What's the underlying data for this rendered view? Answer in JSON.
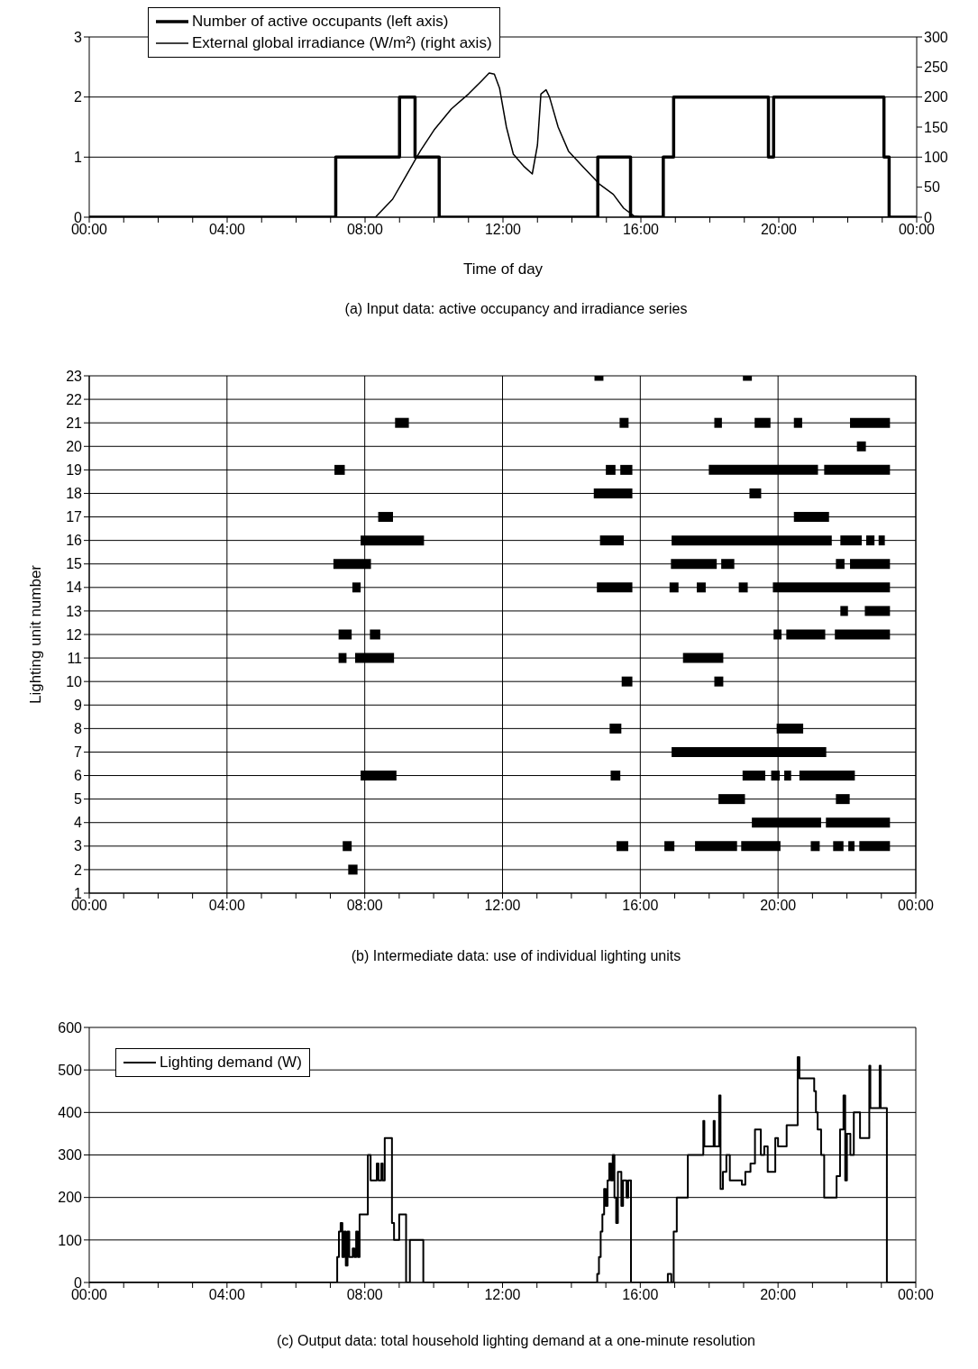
{
  "chart_data": [
    {
      "type": "line",
      "xlabel": "Time of day",
      "annotations": [
        "(a) Input data: active occupancy and irradiance series"
      ],
      "xlim": [
        0,
        24
      ],
      "xticks": [
        {
          "value": 0,
          "label": "00:00"
        },
        {
          "value": 1,
          "label": null
        },
        {
          "value": 2,
          "label": null
        },
        {
          "value": 3,
          "label": null
        },
        {
          "value": 4,
          "label": "04:00"
        },
        {
          "value": 5,
          "label": null
        },
        {
          "value": 6,
          "label": null
        },
        {
          "value": 7,
          "label": null
        },
        {
          "value": 8,
          "label": "08:00"
        },
        {
          "value": 9,
          "label": null
        },
        {
          "value": 10,
          "label": null
        },
        {
          "value": 11,
          "label": null
        },
        {
          "value": 12,
          "label": "12:00"
        },
        {
          "value": 13,
          "label": null
        },
        {
          "value": 14,
          "label": null
        },
        {
          "value": 15,
          "label": null
        },
        {
          "value": 16,
          "label": "16:00"
        },
        {
          "value": 17,
          "label": null
        },
        {
          "value": 18,
          "label": null
        },
        {
          "value": 19,
          "label": null
        },
        {
          "value": 20,
          "label": "20:00"
        },
        {
          "value": 21,
          "label": null
        },
        {
          "value": 22,
          "label": null
        },
        {
          "value": 23,
          "label": null
        },
        {
          "value": 24,
          "label": "00:00"
        }
      ],
      "ylim": [
        0,
        3
      ],
      "yticks": [
        0,
        1,
        2,
        3
      ],
      "y2lim": [
        0,
        300
      ],
      "y2ticks": [
        0,
        50,
        100,
        150,
        200,
        250,
        300
      ],
      "grid": "y",
      "legend": "top left",
      "series": [
        {
          "name": "Number of active occupants (left axis)",
          "type": "step",
          "color": "#000000",
          "x": [
            0,
            7.15,
            9.0,
            9.45,
            10.15,
            14.75,
            15.7,
            16.65,
            16.95,
            19.7,
            19.85,
            23.05,
            23.2,
            24
          ],
          "values": [
            0,
            1,
            2,
            1,
            0,
            1,
            0,
            1,
            2,
            1,
            2,
            1,
            0,
            0
          ]
        },
        {
          "name": "External global irradiance (W/m²) (right axis)",
          "axis": "y2",
          "color": "#000000",
          "x": [
            0,
            8.3,
            8.8,
            9.2,
            9.6,
            10.0,
            10.5,
            11.0,
            11.4,
            11.6,
            11.75,
            11.9,
            12.1,
            12.3,
            12.6,
            12.85,
            13.0,
            13.1,
            13.25,
            13.35,
            13.6,
            13.9,
            14.3,
            14.8,
            15.2,
            15.5,
            15.8,
            16.0,
            24
          ],
          "values": [
            0,
            0,
            30,
            70,
            110,
            145,
            180,
            205,
            228,
            240,
            238,
            215,
            150,
            105,
            85,
            72,
            120,
            205,
            212,
            200,
            150,
            110,
            85,
            55,
            38,
            15,
            2,
            0,
            0
          ]
        }
      ]
    },
    {
      "type": "line",
      "ylabel": "Lighting unit number",
      "annotations": [
        "(b) Intermediate data: use of individual lighting units"
      ],
      "xlim": [
        0,
        24
      ],
      "xticks": [
        {
          "value": 0,
          "label": "00:00"
        },
        {
          "value": 1,
          "label": null
        },
        {
          "value": 2,
          "label": null
        },
        {
          "value": 3,
          "label": null
        },
        {
          "value": 4,
          "label": "04:00"
        },
        {
          "value": 5,
          "label": null
        },
        {
          "value": 6,
          "label": null
        },
        {
          "value": 7,
          "label": null
        },
        {
          "value": 8,
          "label": "08:00"
        },
        {
          "value": 9,
          "label": null
        },
        {
          "value": 10,
          "label": null
        },
        {
          "value": 11,
          "label": null
        },
        {
          "value": 12,
          "label": "12:00"
        },
        {
          "value": 13,
          "label": null
        },
        {
          "value": 14,
          "label": null
        },
        {
          "value": 15,
          "label": null
        },
        {
          "value": 16,
          "label": "16:00"
        },
        {
          "value": 17,
          "label": null
        },
        {
          "value": 18,
          "label": null
        },
        {
          "value": 19,
          "label": null
        },
        {
          "value": 20,
          "label": "20:00"
        },
        {
          "value": 21,
          "label": null
        },
        {
          "value": 22,
          "label": null
        },
        {
          "value": 23,
          "label": null
        },
        {
          "value": 24,
          "label": "00:00"
        }
      ],
      "ylim": [
        1,
        23
      ],
      "yticks": [
        1,
        2,
        3,
        4,
        5,
        6,
        7,
        8,
        9,
        10,
        11,
        12,
        13,
        14,
        15,
        16,
        17,
        18,
        19,
        20,
        21,
        22,
        23
      ],
      "grid": true,
      "series": [
        {
          "color": "#000000",
          "x": [
            14.67,
            14.93
          ],
          "values": [
            23,
            23
          ]
        },
        {
          "color": "#000000",
          "x": [
            18.98,
            19.24
          ],
          "values": [
            23,
            23
          ]
        },
        {
          "color": "#000000",
          "x": [
            8.88,
            9.28
          ],
          "values": [
            21,
            21
          ]
        },
        {
          "color": "#000000",
          "x": [
            15.4,
            15.66
          ],
          "values": [
            21,
            21
          ]
        },
        {
          "color": "#000000",
          "x": [
            18.15,
            18.37
          ],
          "values": [
            21,
            21
          ]
        },
        {
          "color": "#000000",
          "x": [
            19.32,
            19.78
          ],
          "values": [
            21,
            21
          ]
        },
        {
          "color": "#000000",
          "x": [
            20.46,
            20.7
          ],
          "values": [
            21,
            21
          ]
        },
        {
          "color": "#000000",
          "x": [
            22.09,
            23.25
          ],
          "values": [
            21,
            21
          ]
        },
        {
          "color": "#000000",
          "x": [
            22.29,
            22.55
          ],
          "values": [
            20,
            20
          ]
        },
        {
          "color": "#000000",
          "x": [
            7.12,
            7.42
          ],
          "values": [
            19,
            19
          ]
        },
        {
          "color": "#000000",
          "x": [
            15.0,
            15.28
          ],
          "values": [
            19,
            19
          ]
        },
        {
          "color": "#000000",
          "x": [
            15.42,
            15.77
          ],
          "values": [
            19,
            19
          ]
        },
        {
          "color": "#000000",
          "x": [
            17.99,
            21.16
          ],
          "values": [
            19,
            19
          ]
        },
        {
          "color": "#000000",
          "x": [
            21.34,
            23.25
          ],
          "values": [
            19,
            19
          ]
        },
        {
          "color": "#000000",
          "x": [
            14.65,
            15.77
          ],
          "values": [
            18,
            18
          ]
        },
        {
          "color": "#000000",
          "x": [
            19.17,
            19.51
          ],
          "values": [
            18,
            18
          ]
        },
        {
          "color": "#000000",
          "x": [
            8.39,
            8.82
          ],
          "values": [
            17,
            17
          ]
        },
        {
          "color": "#000000",
          "x": [
            20.46,
            21.48
          ],
          "values": [
            17,
            17
          ]
        },
        {
          "color": "#000000",
          "x": [
            7.88,
            9.72
          ],
          "values": [
            16,
            16
          ]
        },
        {
          "color": "#000000",
          "x": [
            14.83,
            15.52
          ],
          "values": [
            16,
            16
          ]
        },
        {
          "color": "#000000",
          "x": [
            16.91,
            21.56
          ],
          "values": [
            16,
            16
          ]
        },
        {
          "color": "#000000",
          "x": [
            21.81,
            22.43
          ],
          "values": [
            16,
            16
          ]
        },
        {
          "color": "#000000",
          "x": [
            22.56,
            22.8
          ],
          "values": [
            16,
            16
          ]
        },
        {
          "color": "#000000",
          "x": [
            22.92,
            23.1
          ],
          "values": [
            16,
            16
          ]
        },
        {
          "color": "#000000",
          "x": [
            7.09,
            8.18
          ],
          "values": [
            15,
            15
          ]
        },
        {
          "color": "#000000",
          "x": [
            16.89,
            18.22
          ],
          "values": [
            15,
            15
          ]
        },
        {
          "color": "#000000",
          "x": [
            18.35,
            18.73
          ],
          "values": [
            15,
            15
          ]
        },
        {
          "color": "#000000",
          "x": [
            21.68,
            21.93
          ],
          "values": [
            15,
            15
          ]
        },
        {
          "color": "#000000",
          "x": [
            22.09,
            23.25
          ],
          "values": [
            15,
            15
          ]
        },
        {
          "color": "#000000",
          "x": [
            7.64,
            7.88
          ],
          "values": [
            14,
            14
          ]
        },
        {
          "color": "#000000",
          "x": [
            14.74,
            15.77
          ],
          "values": [
            14,
            14
          ]
        },
        {
          "color": "#000000",
          "x": [
            16.85,
            17.11
          ],
          "values": [
            14,
            14
          ]
        },
        {
          "color": "#000000",
          "x": [
            17.64,
            17.9
          ],
          "values": [
            14,
            14
          ]
        },
        {
          "color": "#000000",
          "x": [
            18.86,
            19.12
          ],
          "values": [
            14,
            14
          ]
        },
        {
          "color": "#000000",
          "x": [
            19.85,
            23.25
          ],
          "values": [
            14,
            14
          ]
        },
        {
          "color": "#000000",
          "x": [
            21.81,
            22.03
          ],
          "values": [
            13,
            13
          ]
        },
        {
          "color": "#000000",
          "x": [
            22.52,
            23.25
          ],
          "values": [
            13,
            13
          ]
        },
        {
          "color": "#000000",
          "x": [
            7.24,
            7.62
          ],
          "values": [
            12,
            12
          ]
        },
        {
          "color": "#000000",
          "x": [
            8.15,
            8.45
          ],
          "values": [
            12,
            12
          ]
        },
        {
          "color": "#000000",
          "x": [
            19.87,
            20.1
          ],
          "values": [
            12,
            12
          ]
        },
        {
          "color": "#000000",
          "x": [
            20.24,
            21.37
          ],
          "values": [
            12,
            12
          ]
        },
        {
          "color": "#000000",
          "x": [
            21.65,
            23.25
          ],
          "values": [
            12,
            12
          ]
        },
        {
          "color": "#000000",
          "x": [
            7.24,
            7.47
          ],
          "values": [
            11,
            11
          ]
        },
        {
          "color": "#000000",
          "x": [
            7.72,
            8.85
          ],
          "values": [
            11,
            11
          ]
        },
        {
          "color": "#000000",
          "x": [
            17.24,
            18.41
          ],
          "values": [
            11,
            11
          ]
        },
        {
          "color": "#000000",
          "x": [
            15.46,
            15.77
          ],
          "values": [
            10,
            10
          ]
        },
        {
          "color": "#000000",
          "x": [
            18.15,
            18.41
          ],
          "values": [
            10,
            10
          ]
        },
        {
          "color": "#000000",
          "x": [
            15.11,
            15.45
          ],
          "values": [
            8,
            8
          ]
        },
        {
          "color": "#000000",
          "x": [
            19.96,
            20.73
          ],
          "values": [
            8,
            8
          ]
        },
        {
          "color": "#000000",
          "x": [
            16.91,
            21.4
          ],
          "values": [
            7,
            7
          ]
        },
        {
          "color": "#000000",
          "x": [
            7.88,
            8.92
          ],
          "values": [
            6,
            6
          ]
        },
        {
          "color": "#000000",
          "x": [
            15.14,
            15.42
          ],
          "values": [
            6,
            6
          ]
        },
        {
          "color": "#000000",
          "x": [
            18.97,
            19.63
          ],
          "values": [
            6,
            6
          ]
        },
        {
          "color": "#000000",
          "x": [
            19.8,
            20.05
          ],
          "values": [
            6,
            6
          ]
        },
        {
          "color": "#000000",
          "x": [
            20.18,
            20.38
          ],
          "values": [
            6,
            6
          ]
        },
        {
          "color": "#000000",
          "x": [
            20.62,
            22.23
          ],
          "values": [
            6,
            6
          ]
        },
        {
          "color": "#000000",
          "x": [
            18.27,
            19.04
          ],
          "values": [
            5,
            5
          ]
        },
        {
          "color": "#000000",
          "x": [
            21.68,
            22.08
          ],
          "values": [
            5,
            5
          ]
        },
        {
          "color": "#000000",
          "x": [
            19.24,
            21.25
          ],
          "values": [
            4,
            4
          ]
        },
        {
          "color": "#000000",
          "x": [
            21.39,
            23.25
          ],
          "values": [
            4,
            4
          ]
        },
        {
          "color": "#000000",
          "x": [
            7.36,
            7.62
          ],
          "values": [
            3,
            3
          ]
        },
        {
          "color": "#000000",
          "x": [
            15.31,
            15.65
          ],
          "values": [
            3,
            3
          ]
        },
        {
          "color": "#000000",
          "x": [
            16.7,
            16.99
          ],
          "values": [
            3,
            3
          ]
        },
        {
          "color": "#000000",
          "x": [
            17.59,
            18.81
          ],
          "values": [
            3,
            3
          ]
        },
        {
          "color": "#000000",
          "x": [
            18.93,
            20.07
          ],
          "values": [
            3,
            3
          ]
        },
        {
          "color": "#000000",
          "x": [
            20.95,
            21.21
          ],
          "values": [
            3,
            3
          ]
        },
        {
          "color": "#000000",
          "x": [
            21.6,
            21.9
          ],
          "values": [
            3,
            3
          ]
        },
        {
          "color": "#000000",
          "x": [
            22.04,
            22.22
          ],
          "values": [
            3,
            3
          ]
        },
        {
          "color": "#000000",
          "x": [
            22.36,
            23.25
          ],
          "values": [
            3,
            3
          ]
        },
        {
          "color": "#000000",
          "x": [
            7.52,
            7.79
          ],
          "values": [
            2,
            2
          ]
        }
      ]
    },
    {
      "type": "step",
      "annotations": [
        "(c) Output data: total household lighting demand at a one-minute resolution"
      ],
      "xlim": [
        0,
        24
      ],
      "xticks": [
        {
          "value": 0,
          "label": "00:00"
        },
        {
          "value": 1,
          "label": null
        },
        {
          "value": 2,
          "label": null
        },
        {
          "value": 3,
          "label": null
        },
        {
          "value": 4,
          "label": "04:00"
        },
        {
          "value": 5,
          "label": null
        },
        {
          "value": 6,
          "label": null
        },
        {
          "value": 7,
          "label": null
        },
        {
          "value": 8,
          "label": "08:00"
        },
        {
          "value": 9,
          "label": null
        },
        {
          "value": 10,
          "label": null
        },
        {
          "value": 11,
          "label": null
        },
        {
          "value": 12,
          "label": "12:00"
        },
        {
          "value": 13,
          "label": null
        },
        {
          "value": 14,
          "label": null
        },
        {
          "value": 15,
          "label": null
        },
        {
          "value": 16,
          "label": "16:00"
        },
        {
          "value": 17,
          "label": null
        },
        {
          "value": 18,
          "label": null
        },
        {
          "value": 19,
          "label": null
        },
        {
          "value": 20,
          "label": "20:00"
        },
        {
          "value": 21,
          "label": null
        },
        {
          "value": 22,
          "label": null
        },
        {
          "value": 23,
          "label": null
        },
        {
          "value": 24,
          "label": "00:00"
        }
      ],
      "ylim": [
        0,
        600
      ],
      "yticks": [
        0,
        100,
        200,
        300,
        400,
        500,
        600
      ],
      "grid": "y",
      "legend": "top left",
      "series": [
        {
          "name": "Lighting demand (W)",
          "color": "#000000",
          "x": [
            0,
            7.2,
            7.25,
            7.3,
            7.35,
            7.4,
            7.45,
            7.5,
            7.55,
            7.65,
            7.7,
            7.75,
            7.8,
            7.85,
            8.09,
            8.17,
            8.35,
            8.4,
            8.48,
            8.52,
            8.58,
            8.79,
            8.85,
            9.0,
            9.2,
            9.31,
            9.7,
            14.75,
            14.8,
            14.85,
            14.9,
            14.95,
            15.0,
            15.05,
            15.1,
            15.15,
            15.2,
            15.25,
            15.3,
            15.35,
            15.45,
            15.5,
            15.6,
            15.65,
            15.73,
            16.8,
            16.9,
            16.97,
            17.06,
            17.38,
            17.83,
            17.86,
            18.13,
            18.16,
            18.29,
            18.33,
            18.4,
            18.5,
            18.6,
            18.8,
            18.95,
            19.05,
            19.2,
            19.33,
            19.5,
            19.6,
            19.7,
            19.92,
            20.0,
            20.25,
            20.57,
            20.62,
            21.05,
            21.1,
            21.15,
            21.25,
            21.34,
            21.7,
            21.8,
            21.9,
            21.95,
            22.0,
            22.1,
            22.2,
            22.38,
            22.65,
            22.68,
            22.95,
            22.98,
            23.16,
            24
          ],
          "values": [
            0,
            60,
            120,
            140,
            60,
            120,
            40,
            120,
            60,
            80,
            60,
            120,
            60,
            160,
            300,
            240,
            280,
            240,
            280,
            240,
            340,
            140,
            100,
            160,
            0,
            100,
            0,
            20,
            60,
            120,
            160,
            220,
            180,
            240,
            280,
            240,
            300,
            200,
            140,
            260,
            180,
            240,
            200,
            240,
            0,
            20,
            0,
            120,
            200,
            300,
            380,
            320,
            380,
            320,
            440,
            220,
            260,
            300,
            240,
            240,
            230,
            260,
            280,
            360,
            300,
            320,
            260,
            340,
            320,
            370,
            530,
            480,
            450,
            400,
            360,
            300,
            200,
            250,
            360,
            440,
            240,
            350,
            300,
            400,
            340,
            510,
            410,
            510,
            410,
            0,
            0
          ]
        }
      ]
    }
  ]
}
